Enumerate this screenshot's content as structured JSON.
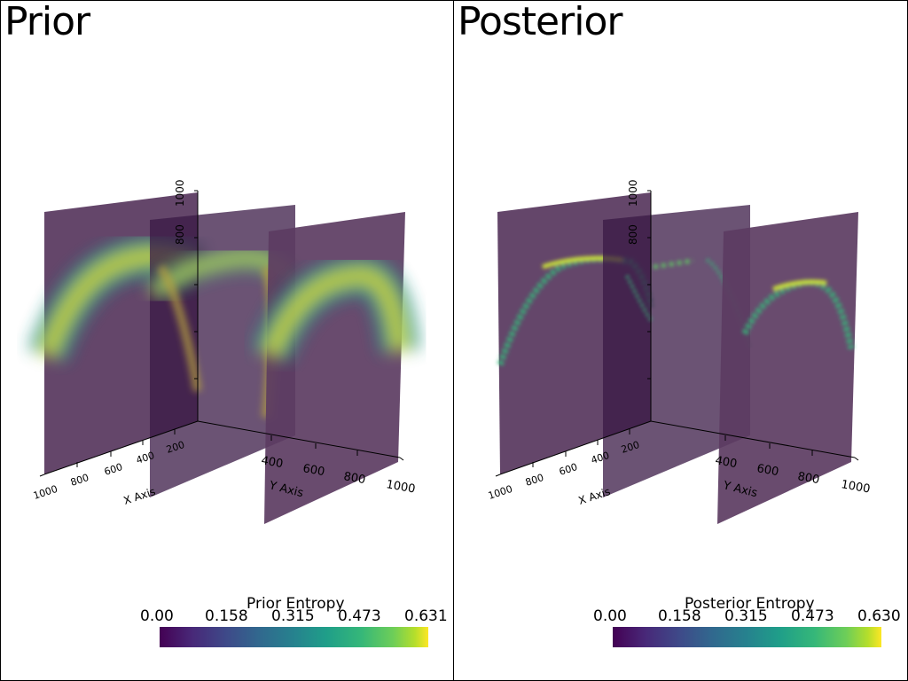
{
  "panels": [
    {
      "title": "Prior",
      "colorbar": {
        "title": "Prior Entropy",
        "ticks": [
          "0.00",
          "0.158",
          "0.315",
          "0.473",
          "0.631"
        ],
        "range": [
          0,
          0.631
        ],
        "colormap": "viridis"
      },
      "axes": {
        "x_label": "X Axis",
        "y_label": "Y Axis",
        "x_ticks": [
          "1000",
          "800",
          "600",
          "400",
          "200"
        ],
        "y_ticks": [
          "400",
          "600",
          "800",
          "1000"
        ],
        "z_ticks": [
          "1000",
          "800"
        ]
      }
    },
    {
      "title": "Posterior",
      "colorbar": {
        "title": "Posterior Entropy",
        "ticks": [
          "0.00",
          "0.158",
          "0.315",
          "0.473",
          "0.630"
        ],
        "range": [
          0,
          0.63
        ],
        "colormap": "viridis"
      },
      "axes": {
        "x_label": "X Axis",
        "y_label": "Y Axis",
        "x_ticks": [
          "1000",
          "800",
          "600",
          "400",
          "200"
        ],
        "y_ticks": [
          "400",
          "600",
          "800",
          "1000"
        ],
        "z_ticks": [
          "1000",
          "800"
        ]
      }
    }
  ],
  "chart_data": [
    {
      "type": "heatmap",
      "title": "Prior",
      "description_kind": "3D orthogonal slices of entropy field",
      "colorbar_title": "Prior Entropy",
      "value_range": [
        0,
        0.631
      ],
      "colormap": "viridis",
      "background_value": 0.0,
      "xlabel": "X Axis",
      "ylabel": "Y Axis",
      "x_ticks": [
        1000,
        800,
        600,
        400,
        200
      ],
      "y_ticks": [
        400,
        600,
        800,
        1000
      ],
      "z_ticks": [
        1000,
        800
      ]
    },
    {
      "type": "heatmap",
      "title": "Posterior",
      "description_kind": "3D orthogonal slices of entropy field",
      "colorbar_title": "Posterior Entropy",
      "value_range": [
        0,
        0.63
      ],
      "colormap": "viridis",
      "background_value": 0.0,
      "xlabel": "X Axis",
      "ylabel": "Y Axis",
      "x_ticks": [
        1000,
        800,
        600,
        400,
        200
      ],
      "y_ticks": [
        400,
        600,
        800,
        1000
      ],
      "z_ticks": [
        1000,
        800
      ]
    }
  ]
}
